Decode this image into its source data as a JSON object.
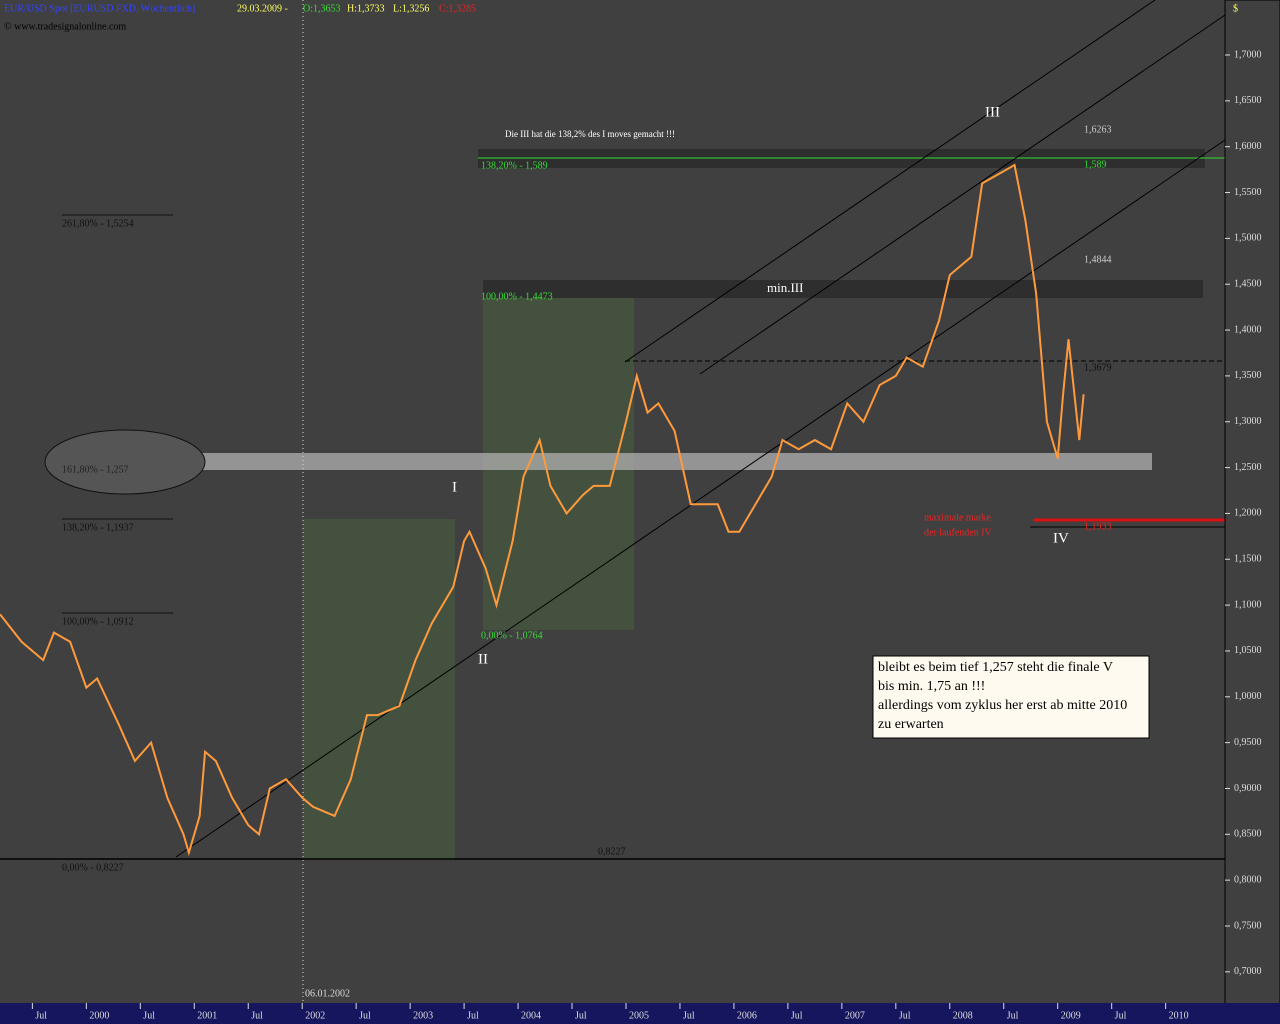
{
  "chart_data": {
    "type": "line",
    "header": {
      "instrument": "EUR/USD Spot [EURUSD FXD, Wöchentlich]",
      "date": "29.03.2009 -",
      "open": "O:1,3653",
      "high": "H:1,3733",
      "low": "L:1,3256",
      "close": "C:1,3285"
    },
    "copyright": "© www.tradesignalonline.com",
    "y_axis_label": "$",
    "date_marker": "06.01.2002",
    "series": [
      {
        "name": "EUR/USD",
        "color": "#ff9a3c",
        "x": [
          1999.2,
          1999.4,
          1999.6,
          1999.7,
          1999.85,
          2000.0,
          2000.1,
          2000.3,
          2000.45,
          2000.6,
          2000.75,
          2000.9,
          2000.95,
          2001.05,
          2001.1,
          2001.2,
          2001.35,
          2001.5,
          2001.6,
          2001.7,
          2001.85,
          2002.0,
          2002.1,
          2002.3,
          2002.45,
          2002.6,
          2002.7,
          2002.9,
          2003.05,
          2003.2,
          2003.4,
          2003.5,
          2003.55,
          2003.7,
          2003.8,
          2003.95,
          2004.05,
          2004.2,
          2004.3,
          2004.45,
          2004.6,
          2004.7,
          2004.85,
          2005.0,
          2005.1,
          2005.2,
          2005.3,
          2005.45,
          2005.6,
          2005.7,
          2005.85,
          2005.95,
          2006.05,
          2006.2,
          2006.35,
          2006.45,
          2006.6,
          2006.75,
          2006.9,
          2007.05,
          2007.2,
          2007.35,
          2007.5,
          2007.6,
          2007.75,
          2007.9,
          2008.0,
          2008.1,
          2008.2,
          2008.3,
          2008.45,
          2008.6,
          2008.7,
          2008.8,
          2008.9,
          2009.0,
          2009.05,
          2009.1,
          2009.2,
          2009.24
        ],
        "values": [
          1.09,
          1.06,
          1.04,
          1.07,
          1.06,
          1.01,
          1.02,
          0.97,
          0.93,
          0.95,
          0.89,
          0.85,
          0.83,
          0.87,
          0.94,
          0.93,
          0.89,
          0.86,
          0.85,
          0.9,
          0.91,
          0.89,
          0.88,
          0.87,
          0.91,
          0.98,
          0.98,
          0.99,
          1.04,
          1.08,
          1.12,
          1.17,
          1.18,
          1.14,
          1.1,
          1.17,
          1.24,
          1.28,
          1.23,
          1.2,
          1.22,
          1.23,
          1.23,
          1.3,
          1.35,
          1.31,
          1.32,
          1.29,
          1.21,
          1.21,
          1.21,
          1.18,
          1.18,
          1.21,
          1.24,
          1.28,
          1.27,
          1.28,
          1.27,
          1.32,
          1.3,
          1.34,
          1.35,
          1.37,
          1.36,
          1.41,
          1.46,
          1.47,
          1.48,
          1.56,
          1.57,
          1.58,
          1.52,
          1.44,
          1.3,
          1.26,
          1.33,
          1.39,
          1.28,
          1.33
        ]
      }
    ],
    "xlim": [
      1999.2,
      2010.55
    ],
    "xticks": [
      {
        "value": 1999.5,
        "label": "Jul"
      },
      2000,
      {
        "value": 2000.5,
        "label": "Jul"
      },
      2001,
      {
        "value": 2001.5,
        "label": "Jul"
      },
      2002,
      {
        "value": 2002.5,
        "label": "Jul"
      },
      2003,
      {
        "value": 2003.5,
        "label": "Jul"
      },
      2004,
      {
        "value": 2004.5,
        "label": "Jul"
      },
      2005,
      {
        "value": 2005.5,
        "label": "Jul"
      },
      2006,
      {
        "value": 2006.5,
        "label": "Jul"
      },
      2007,
      {
        "value": 2007.5,
        "label": "Jul"
      },
      2008,
      {
        "value": 2008.5,
        "label": "Jul"
      },
      2009,
      {
        "value": 2009.5,
        "label": "Jul"
      },
      2010
    ],
    "ylim": [
      0.666,
      1.76
    ],
    "yticks": [
      {
        "value": 0.7,
        "label": "0,7000"
      },
      {
        "value": 0.75,
        "label": "0,7500"
      },
      {
        "value": 0.8,
        "label": "0,8000"
      },
      {
        "value": 0.85,
        "label": "0,8500"
      },
      {
        "value": 0.9,
        "label": "0,9000"
      },
      {
        "value": 0.95,
        "label": "0,9500"
      },
      {
        "value": 1.0,
        "label": "1,0000"
      },
      {
        "value": 1.05,
        "label": "1,0500"
      },
      {
        "value": 1.1,
        "label": "1,1000"
      },
      {
        "value": 1.15,
        "label": "1,1500"
      },
      {
        "value": 1.2,
        "label": "1,2000"
      },
      {
        "value": 1.25,
        "label": "1,2500"
      },
      {
        "value": 1.3,
        "label": "1,3000"
      },
      {
        "value": 1.35,
        "label": "1,3500"
      },
      {
        "value": 1.4,
        "label": "1,4000"
      },
      {
        "value": 1.45,
        "label": "1,4500"
      },
      {
        "value": 1.5,
        "label": "1,5000"
      },
      {
        "value": 1.55,
        "label": "1,5500"
      },
      {
        "value": 1.6,
        "label": "1,6000"
      },
      {
        "value": 1.65,
        "label": "1,6500"
      },
      {
        "value": 1.7,
        "label": "1,7000"
      }
    ],
    "annotations": [
      "Die III hat die 138,2% des I moves gemacht !!!",
      "138,20% - 1,589",
      "1,589",
      "1,6263",
      "III",
      "261,80% - 1,5254",
      "100,00% - 1,4473",
      "min.III",
      "1,4844",
      "1,3679",
      "161,80% - 1,257",
      "I",
      "138,20% - 1,1937",
      "maximale marke",
      "der laufenden IV",
      "1,1933",
      "IV",
      "100,00% - 1,0912",
      "0,00% - 1,0764",
      "II",
      "0,00% - 0,8227",
      "0,8227"
    ],
    "note": [
      "bleibt es  beim tief 1,257 steht die finale V",
      "bis min. 1,75 an !!!",
      "allerdings vom zyklus her erst ab mitte 2010",
      "zu erwarten"
    ]
  }
}
